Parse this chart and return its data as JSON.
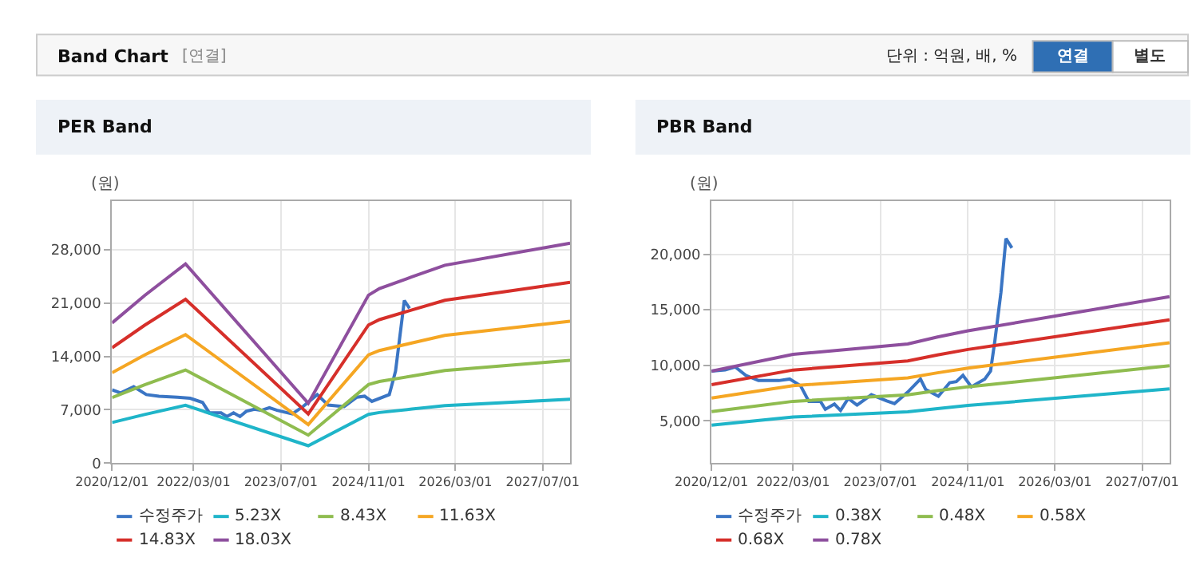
{
  "chart_data": [
    {
      "type": "other",
      "title": "Band Chart",
      "annotations": [
        "[연결]",
        "단위 : 억원, 배, %",
        "연결",
        "별도"
      ]
    },
    {
      "type": "line",
      "title": "PER Band",
      "ylabel": "(원)",
      "grid": true,
      "legend": "bottom",
      "marker": "none",
      "line_style": "solid",
      "xlim": [
        "2020-12-01",
        "2027-12-01"
      ],
      "xticks": [
        {
          "value": "2020-12-01",
          "label": "2020/12/01"
        },
        {
          "value": "2022-03-01",
          "label": "2022/03/01"
        },
        {
          "value": "2023-07-01",
          "label": "2023/07/01"
        },
        {
          "value": "2024-11-01",
          "label": "2024/11/01"
        },
        {
          "value": "2026-03-01",
          "label": "2026/03/01"
        },
        {
          "value": "2027-07-01",
          "label": "2027/07/01"
        }
      ],
      "ylim": [
        0,
        34400
      ],
      "yticks": [
        {
          "value": 0,
          "label": "0"
        },
        {
          "value": 7000,
          "label": "7,000"
        },
        {
          "value": 14000,
          "label": "14,000"
        },
        {
          "value": 21000,
          "label": "21,000"
        },
        {
          "value": 28000,
          "label": "28,000"
        }
      ],
      "series": [
        {
          "name": "수정주가",
          "color": "#3a75c4",
          "x": [
            "2020-12-01",
            "2021-01-18",
            "2021-04-01",
            "2021-06-10",
            "2021-08-20",
            "2021-12-01",
            "2022-02-10",
            "2022-04-20",
            "2022-05-28",
            "2022-08-01",
            "2022-09-03",
            "2022-10-10",
            "2022-11-15",
            "2022-12-20",
            "2023-02-03",
            "2023-03-15",
            "2023-04-28",
            "2023-06-10",
            "2023-09-03",
            "2023-11-01",
            "2024-01-20",
            "2024-03-20",
            "2024-06-18",
            "2024-08-28",
            "2024-10-10",
            "2024-11-20",
            "2025-02-25",
            "2025-04-01",
            "2025-05-20",
            "2025-06-18"
          ],
          "values": [
            9610,
            9200,
            10020,
            8990,
            8780,
            8650,
            8510,
            7960,
            6590,
            6590,
            6110,
            6590,
            6110,
            6790,
            7070,
            6930,
            7270,
            6930,
            6450,
            7410,
            8990,
            7620,
            7410,
            8650,
            8780,
            8100,
            8990,
            12080,
            21340,
            20310
          ]
        },
        {
          "name": "5.23X",
          "color": "#1fb5c9",
          "x": [
            "2020-12-01",
            "2021-06-01",
            "2022-01-15",
            "2023-12-01",
            "2024-11-01",
            "2025-01-01",
            "2025-07-01",
            "2026-01-01",
            "2027-12-01"
          ],
          "values": [
            5330,
            6380,
            7580,
            2280,
            6390,
            6640,
            7090,
            7530,
            8370
          ]
        },
        {
          "name": "8.43X",
          "color": "#8fbc4f",
          "x": [
            "2020-12-01",
            "2021-06-01",
            "2022-01-15",
            "2023-12-01",
            "2024-11-01",
            "2025-01-01",
            "2025-07-01",
            "2026-01-01",
            "2027-12-01"
          ],
          "values": [
            8600,
            10280,
            12220,
            3670,
            10300,
            10710,
            11420,
            12140,
            13490
          ]
        },
        {
          "name": "11.63X",
          "color": "#f5a623",
          "x": [
            "2020-12-01",
            "2021-06-01",
            "2022-01-15",
            "2023-12-01",
            "2024-11-01",
            "2025-01-01",
            "2025-07-01",
            "2026-01-01",
            "2027-12-01"
          ],
          "values": [
            11860,
            14190,
            16860,
            5060,
            14210,
            14770,
            15760,
            16750,
            18610
          ]
        },
        {
          "name": "14.83X",
          "color": "#d62f2a",
          "x": [
            "2020-12-01",
            "2021-06-01",
            "2022-01-15",
            "2023-12-01",
            "2024-11-01",
            "2025-01-01",
            "2025-07-01",
            "2026-01-01",
            "2027-12-01"
          ],
          "values": [
            15130,
            18090,
            21500,
            6450,
            18120,
            18830,
            20090,
            21360,
            23730
          ]
        },
        {
          "name": "18.03X",
          "color": "#8e4f9e",
          "x": [
            "2020-12-01",
            "2021-06-01",
            "2022-01-15",
            "2023-12-01",
            "2024-11-01",
            "2025-01-01",
            "2025-07-01",
            "2026-01-01",
            "2027-12-01"
          ],
          "values": [
            18390,
            22000,
            26140,
            7840,
            22030,
            22900,
            24430,
            25960,
            28850
          ]
        }
      ]
    },
    {
      "type": "line",
      "title": "PBR Band",
      "ylabel": "(원)",
      "grid": true,
      "legend": "bottom",
      "marker": "none",
      "line_style": "solid",
      "xlim": [
        "2020-12-01",
        "2027-12-01"
      ],
      "xticks": [
        {
          "value": "2020-12-01",
          "label": "2020/12/01"
        },
        {
          "value": "2022-03-01",
          "label": "2022/03/01"
        },
        {
          "value": "2023-07-01",
          "label": "2023/07/01"
        },
        {
          "value": "2024-11-01",
          "label": "2024/11/01"
        },
        {
          "value": "2026-03-01",
          "label": "2026/03/01"
        },
        {
          "value": "2027-07-01",
          "label": "2027/07/01"
        }
      ],
      "ylim": [
        1200,
        24800
      ],
      "yticks": [
        {
          "value": 5000,
          "label": "5,000"
        },
        {
          "value": 10000,
          "label": "10,000"
        },
        {
          "value": 15000,
          "label": "15,000"
        },
        {
          "value": 20000,
          "label": "20,000"
        }
      ],
      "series": [
        {
          "name": "수정주가",
          "color": "#3a75c4",
          "x": [
            "2020-12-01",
            "2021-02-15",
            "2021-04-12",
            "2021-06-10",
            "2021-08-20",
            "2021-12-12",
            "2022-02-10",
            "2022-04-12",
            "2022-05-28",
            "2022-08-01",
            "2022-08-28",
            "2022-10-18",
            "2022-11-21",
            "2023-01-03",
            "2023-02-21",
            "2023-05-12",
            "2023-08-06",
            "2023-09-18",
            "2023-12-01",
            "2024-02-10",
            "2024-03-10",
            "2024-05-20",
            "2024-07-22",
            "2024-08-28",
            "2024-10-04",
            "2024-11-20",
            "2025-02-03",
            "2025-03-07",
            "2025-04-01",
            "2025-05-04",
            "2025-06-01",
            "2025-07-04"
          ],
          "values": [
            9480,
            9580,
            9860,
            9100,
            8630,
            8630,
            8770,
            8160,
            6750,
            6750,
            6040,
            6510,
            5940,
            7030,
            6420,
            7360,
            6790,
            6560,
            7590,
            8770,
            7830,
            7220,
            8440,
            8540,
            9100,
            8070,
            8770,
            9480,
            12310,
            16560,
            21420,
            20570
          ]
        },
        {
          "name": "0.38X",
          "color": "#1fb5c9",
          "x": [
            "2020-12-01",
            "2022-03-01",
            "2023-12-01",
            "2024-05-15",
            "2024-11-01",
            "2027-12-01"
          ],
          "values": [
            4620,
            5350,
            5810,
            6110,
            6390,
            7880
          ]
        },
        {
          "name": "0.48X",
          "color": "#8fbc4f",
          "x": [
            "2020-12-01",
            "2022-03-01",
            "2023-12-01",
            "2024-05-15",
            "2024-11-01",
            "2027-12-01"
          ],
          "values": [
            5830,
            6760,
            7340,
            7720,
            8070,
            9960
          ]
        },
        {
          "name": "0.58X",
          "color": "#f5a623",
          "x": [
            "2020-12-01",
            "2022-03-01",
            "2023-12-01",
            "2024-05-15",
            "2024-11-01",
            "2027-12-01"
          ],
          "values": [
            7050,
            8170,
            8870,
            9330,
            9750,
            12030
          ]
        },
        {
          "name": "0.68X",
          "color": "#d62f2a",
          "x": [
            "2020-12-01",
            "2022-03-01",
            "2023-12-01",
            "2024-05-15",
            "2024-11-01",
            "2027-12-01"
          ],
          "values": [
            8260,
            9580,
            10400,
            10940,
            11430,
            14100
          ]
        },
        {
          "name": "0.78X",
          "color": "#8e4f9e",
          "x": [
            "2020-12-01",
            "2022-03-01",
            "2023-12-01",
            "2024-05-15",
            "2024-11-01",
            "2027-12-01"
          ],
          "values": [
            9480,
            10990,
            11930,
            12550,
            13110,
            16180
          ]
        }
      ]
    }
  ]
}
